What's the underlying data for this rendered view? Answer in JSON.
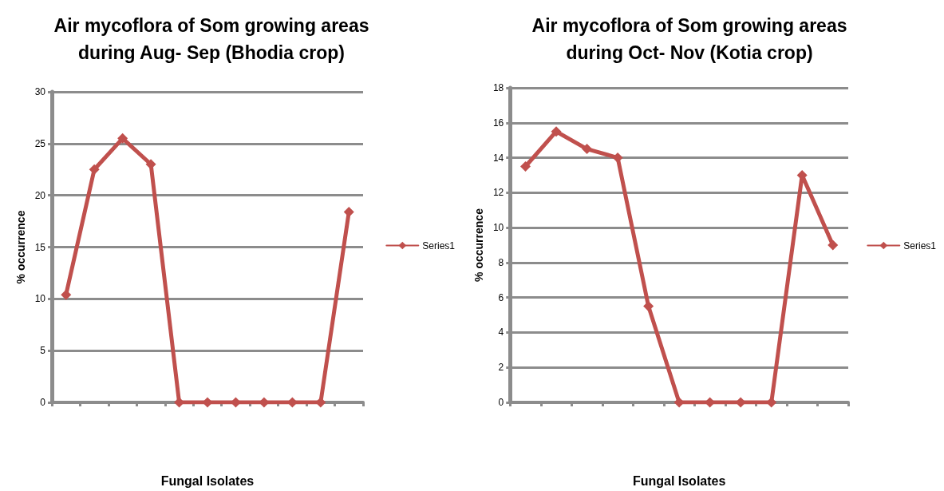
{
  "chart_data": [
    {
      "type": "line",
      "title": "Air mycoflora of Som growing areas\nduring Aug- Sep (Bhodia crop)",
      "xlabel": "Fungal Isolates",
      "ylabel": "% occurrence",
      "categories": [
        null,
        null,
        null,
        null,
        null,
        null,
        null,
        null,
        null,
        null,
        null
      ],
      "series": [
        {
          "name": "Series1",
          "color": "#c0504d",
          "values": [
            10.4,
            22.5,
            25.5,
            23,
            0,
            0,
            0,
            0,
            0,
            0,
            18.4
          ]
        }
      ],
      "ylim": [
        0,
        30
      ],
      "yticks": [
        0,
        5,
        10,
        15,
        20,
        25,
        30
      ],
      "grid": "y",
      "legend": "right",
      "marker": "diamond",
      "line_style": "solid"
    },
    {
      "type": "line",
      "title": "Air mycoflora of Som growing areas\nduring Oct- Nov (Kotia crop)",
      "xlabel": "Fungal Isolates",
      "ylabel": "% occurrence",
      "categories": [
        null,
        null,
        null,
        null,
        null,
        null,
        null,
        null,
        null,
        null,
        null
      ],
      "series": [
        {
          "name": "Series1",
          "color": "#c0504d",
          "values": [
            13.5,
            15.5,
            14.5,
            14,
            5.5,
            0,
            0,
            0,
            0,
            13,
            9
          ]
        }
      ],
      "ylim": [
        0,
        18
      ],
      "yticks": [
        0,
        2,
        4,
        6,
        8,
        10,
        12,
        14,
        16,
        18
      ],
      "grid": "y",
      "legend": "right",
      "marker": "diamond",
      "line_style": "solid"
    }
  ]
}
